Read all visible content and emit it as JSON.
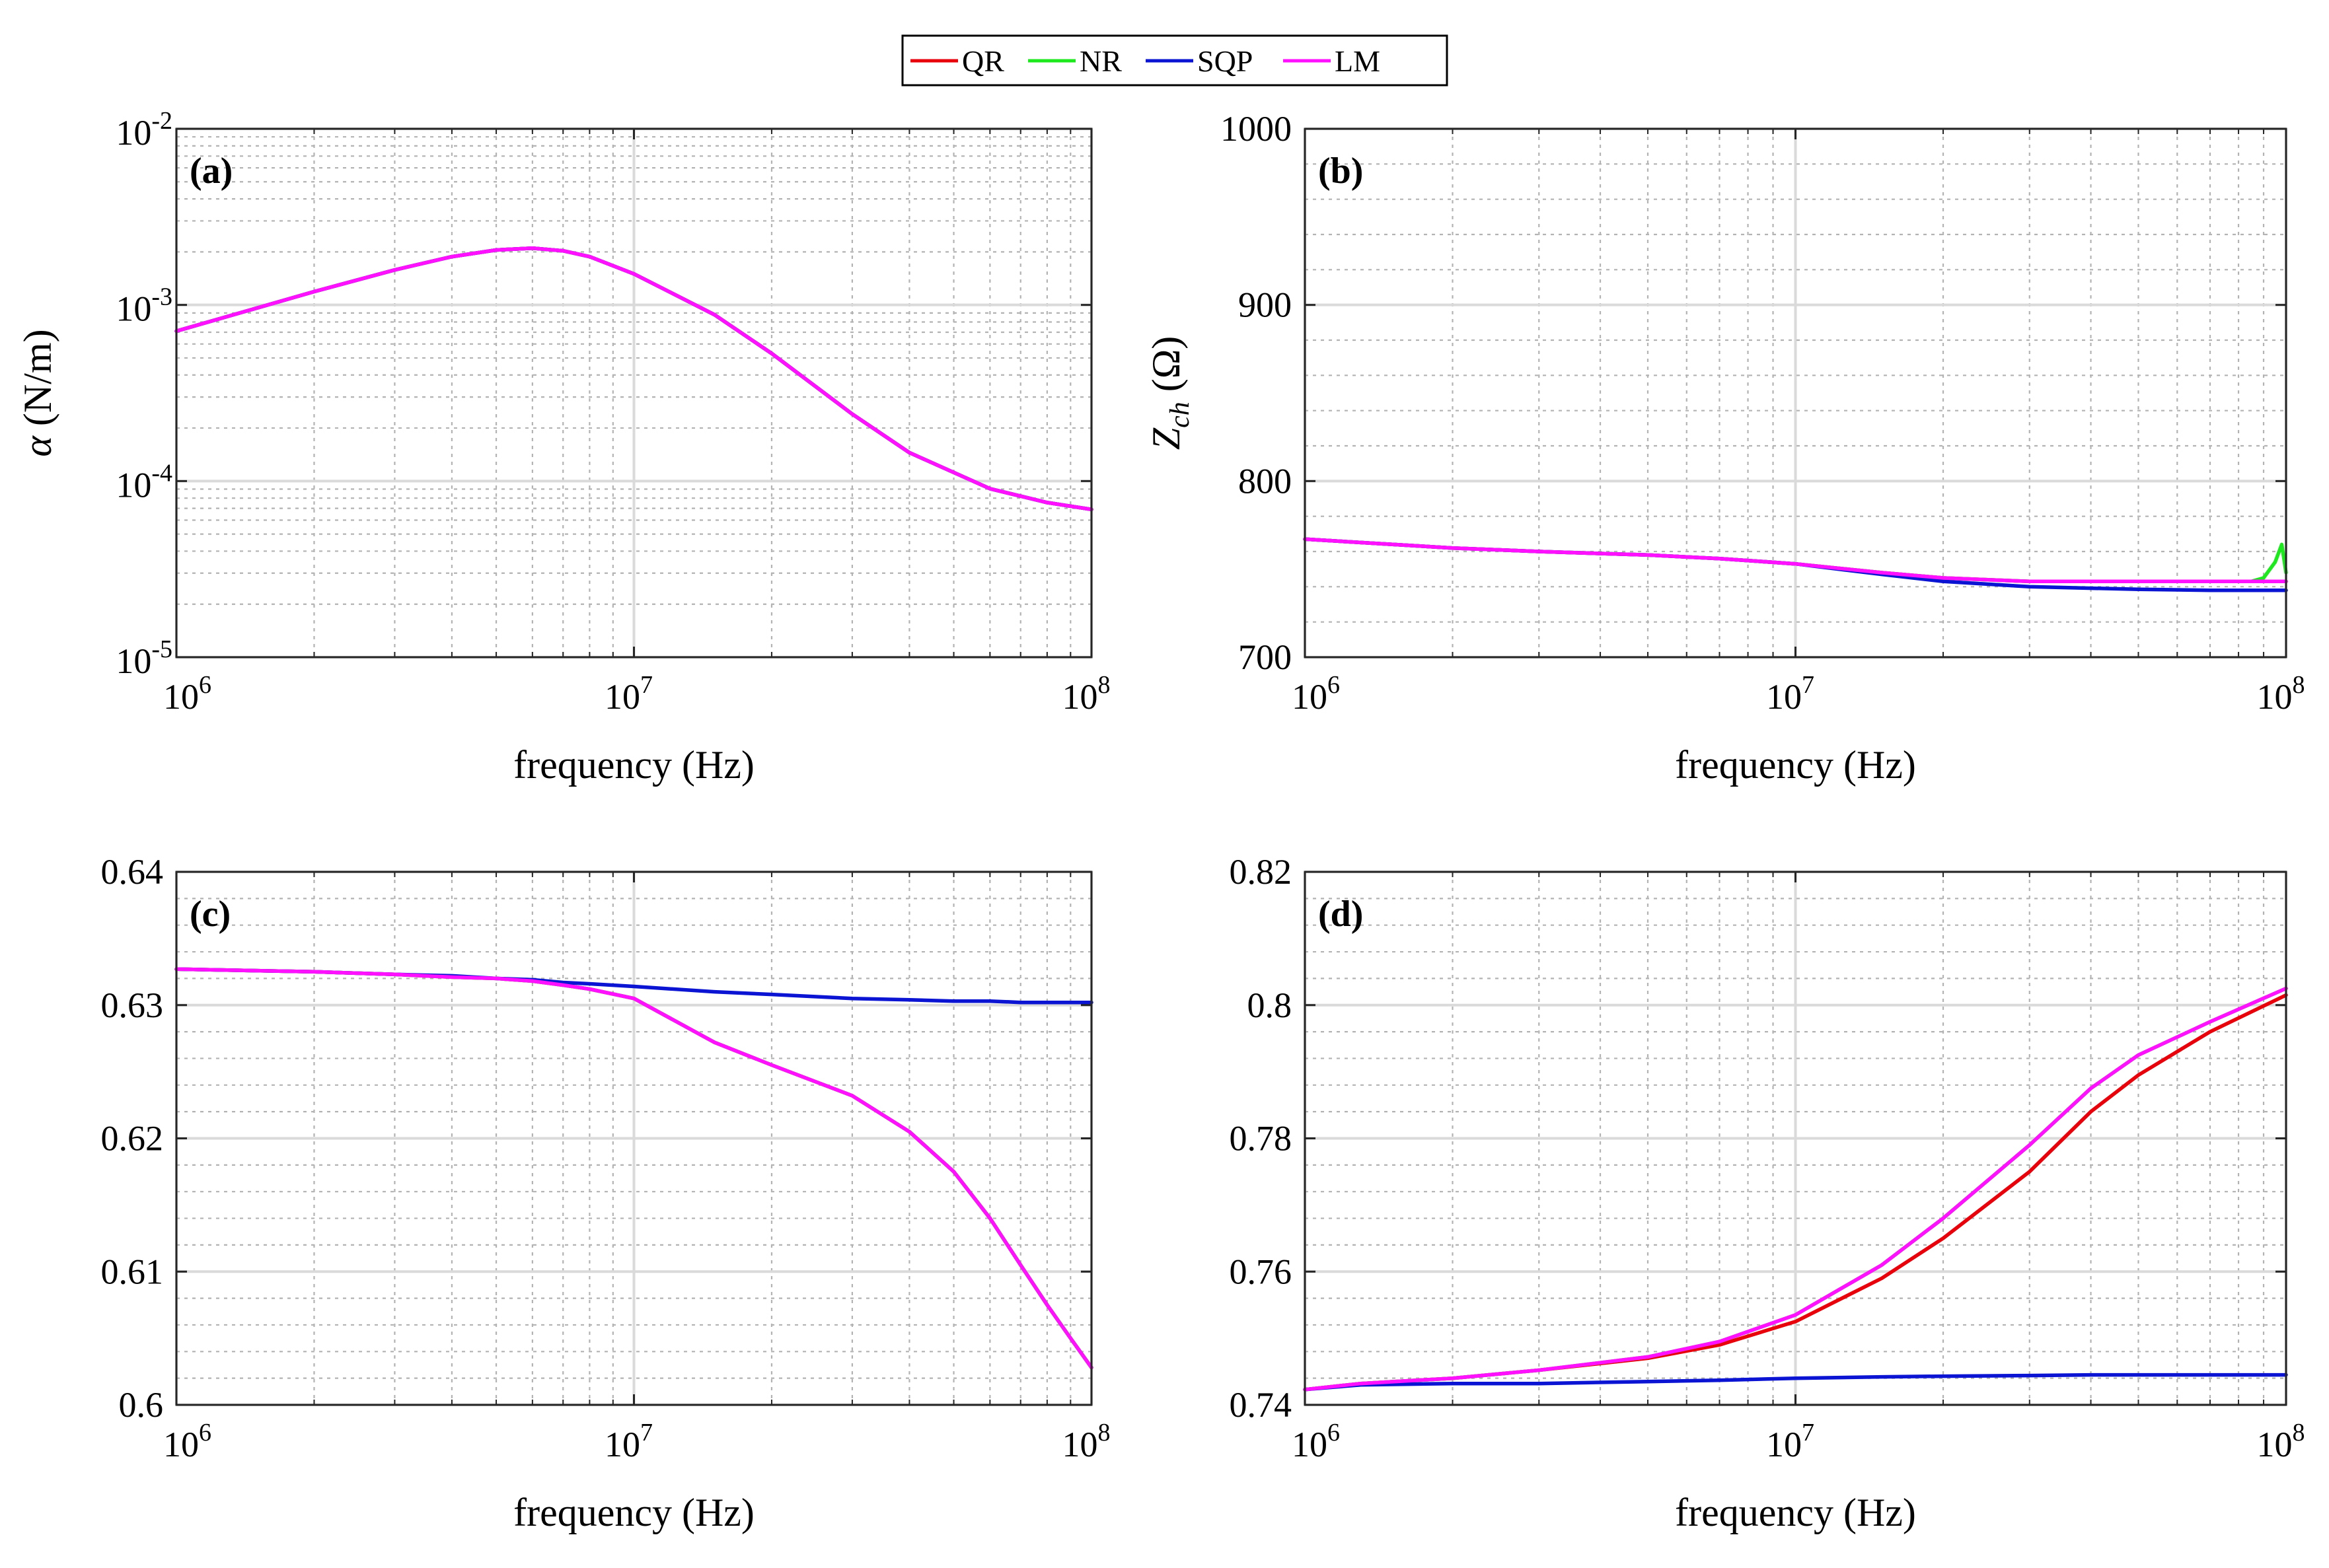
{
  "legend": {
    "entries": [
      {
        "label": "QR",
        "color": "#e8000b"
      },
      {
        "label": "NR",
        "color": "#1ee81e"
      },
      {
        "label": "SQP",
        "color": "#0a14d2"
      },
      {
        "label": "LM",
        "color": "#ff10ff"
      }
    ]
  },
  "chart_data": [
    {
      "type": "line",
      "panel": "(a)",
      "xlabel": "frequency (Hz)",
      "ylabel_symbol": "α",
      "ylabel_unit": " (N/m)",
      "xscale": "log",
      "yscale": "log",
      "xlim": [
        1000000,
        100000000
      ],
      "ylim": [
        1e-05,
        0.01
      ],
      "x_tick_labels": [
        {
          "base": "10",
          "exp": "6"
        },
        {
          "base": "10",
          "exp": "7"
        },
        {
          "base": "10",
          "exp": "8"
        }
      ],
      "y_tick_labels": [
        {
          "base": "10",
          "exp": "-5"
        },
        {
          "base": "10",
          "exp": "-4"
        },
        {
          "base": "10",
          "exp": "-3"
        },
        {
          "base": "10",
          "exp": "-2"
        }
      ],
      "x": [
        1000000.0,
        2000000.0,
        3000000.0,
        4000000.0,
        5000000.0,
        6000000.0,
        7000000.0,
        8000000.0,
        10000000.0,
        15000000.0,
        20000000.0,
        30000000.0,
        40000000.0,
        60000000.0,
        80000000.0,
        100000000.0
      ],
      "series": [
        {
          "name": "QR",
          "values": [
            0.00071,
            0.00119,
            0.00158,
            0.00188,
            0.00205,
            0.0021,
            0.00203,
            0.00188,
            0.0015,
            0.00088,
            0.00053,
            0.00024,
            0.000145,
            9.05e-05,
            7.55e-05,
            6.9e-05
          ]
        },
        {
          "name": "NR",
          "values": [
            0.00071,
            0.00119,
            0.00158,
            0.00188,
            0.00205,
            0.0021,
            0.00203,
            0.00188,
            0.0015,
            0.00088,
            0.00053,
            0.00024,
            0.000145,
            9.05e-05,
            7.55e-05,
            6.9e-05
          ]
        },
        {
          "name": "SQP",
          "values": [
            0.00071,
            0.00119,
            0.00158,
            0.00188,
            0.00205,
            0.0021,
            0.00203,
            0.00188,
            0.0015,
            0.00088,
            0.00053,
            0.00024,
            0.000145,
            9.05e-05,
            7.55e-05,
            6.9e-05
          ]
        },
        {
          "name": "LM",
          "values": [
            0.00071,
            0.00119,
            0.00158,
            0.00188,
            0.00205,
            0.0021,
            0.00203,
            0.00188,
            0.0015,
            0.00088,
            0.00053,
            0.00024,
            0.000145,
            9.05e-05,
            7.55e-05,
            6.9e-05
          ]
        }
      ]
    },
    {
      "type": "line",
      "panel": "(b)",
      "xlabel": "frequency (Hz)",
      "ylabel_symbol": "Z",
      "ylabel_sub": "ch",
      "ylabel_unit": " (Ω)",
      "xscale": "log",
      "yscale": "linear",
      "xlim": [
        1000000,
        100000000
      ],
      "ylim": [
        700,
        1000
      ],
      "x_tick_labels": [
        {
          "base": "10",
          "exp": "6"
        },
        {
          "base": "10",
          "exp": "7"
        },
        {
          "base": "10",
          "exp": "8"
        }
      ],
      "y_ticks": [
        700,
        800,
        900,
        1000
      ],
      "y_tick_labels": [
        "700",
        "800",
        "900",
        "1000"
      ],
      "x": [
        1000000.0,
        2000000.0,
        3000000.0,
        5000000.0,
        7000000.0,
        10000000.0,
        15000000.0,
        20000000.0,
        30000000.0,
        50000000.0,
        70000000.0,
        85000000.0,
        90000000.0,
        95000000.0,
        98000000.0,
        100000000.0
      ],
      "series": [
        {
          "name": "QR",
          "values": [
            767,
            762,
            760,
            758,
            756,
            753,
            748,
            745,
            743,
            743,
            743,
            743,
            743,
            743,
            743,
            743
          ]
        },
        {
          "name": "NR",
          "values": [
            767,
            762,
            760,
            758,
            756,
            753,
            748,
            745,
            743,
            743,
            743,
            743,
            745,
            754,
            764,
            748
          ]
        },
        {
          "name": "SQP",
          "values": [
            767,
            762,
            760,
            758,
            756,
            753,
            747,
            743,
            740,
            738.5,
            738,
            738,
            738,
            738,
            738,
            738
          ]
        },
        {
          "name": "LM",
          "values": [
            767,
            762,
            760,
            758,
            756,
            753,
            748,
            745,
            743,
            743,
            743,
            743,
            743,
            743,
            743,
            743
          ]
        }
      ]
    },
    {
      "type": "line",
      "panel": "(c)",
      "xlabel": "frequency (Hz)",
      "xscale": "log",
      "yscale": "linear",
      "xlim": [
        1000000,
        100000000
      ],
      "ylim": [
        0.6,
        0.64
      ],
      "x_tick_labels": [
        {
          "base": "10",
          "exp": "6"
        },
        {
          "base": "10",
          "exp": "7"
        },
        {
          "base": "10",
          "exp": "8"
        }
      ],
      "y_ticks": [
        0.6,
        0.61,
        0.62,
        0.63,
        0.64
      ],
      "y_tick_labels": [
        "0.6",
        "0.61",
        "0.62",
        "0.63",
        "0.64"
      ],
      "x": [
        1000000.0,
        2000000.0,
        3000000.0,
        4000000.0,
        5000000.0,
        6000000.0,
        7000000.0,
        8000000.0,
        10000000.0,
        15000000.0,
        20000000.0,
        30000000.0,
        40000000.0,
        50000000.0,
        60000000.0,
        70000000.0,
        80000000.0,
        90000000.0,
        100000000.0
      ],
      "series": [
        {
          "name": "QR",
          "values": [
            0.6327,
            0.6325,
            0.6323,
            0.6321,
            0.632,
            0.6318,
            0.6315,
            0.6312,
            0.6305,
            0.6272,
            0.6255,
            0.6232,
            0.6205,
            0.6175,
            0.614,
            0.6105,
            0.6075,
            0.605,
            0.6028
          ]
        },
        {
          "name": "NR",
          "values": [
            0.6327,
            0.6325,
            0.6323,
            0.6321,
            0.632,
            0.6318,
            0.6315,
            0.6312,
            0.6305,
            0.6272,
            0.6255,
            0.6232,
            0.6205,
            0.6175,
            0.614,
            0.6105,
            0.6075,
            0.605,
            0.6028
          ]
        },
        {
          "name": "SQP",
          "values": [
            0.6327,
            0.6325,
            0.6323,
            0.6322,
            0.632,
            0.6319,
            0.6317,
            0.6316,
            0.6314,
            0.631,
            0.6308,
            0.6305,
            0.6304,
            0.6303,
            0.6303,
            0.6302,
            0.6302,
            0.6302,
            0.6302
          ]
        },
        {
          "name": "LM",
          "values": [
            0.6327,
            0.6325,
            0.6323,
            0.6321,
            0.632,
            0.6318,
            0.6315,
            0.6312,
            0.6305,
            0.6272,
            0.6255,
            0.6232,
            0.6205,
            0.6175,
            0.614,
            0.6105,
            0.6075,
            0.605,
            0.6028
          ]
        }
      ]
    },
    {
      "type": "line",
      "panel": "(d)",
      "xlabel": "frequency (Hz)",
      "xscale": "log",
      "yscale": "linear",
      "xlim": [
        1000000,
        100000000
      ],
      "ylim": [
        0.74,
        0.82
      ],
      "x_tick_labels": [
        {
          "base": "10",
          "exp": "6"
        },
        {
          "base": "10",
          "exp": "7"
        },
        {
          "base": "10",
          "exp": "8"
        }
      ],
      "y_ticks": [
        0.74,
        0.76,
        0.78,
        0.8,
        0.82
      ],
      "y_tick_labels": [
        "0.74",
        "0.76",
        "0.78",
        "0.8",
        "0.82"
      ],
      "x": [
        1000000.0,
        1300000.0,
        2000000.0,
        3000000.0,
        5000000.0,
        7000000.0,
        10000000.0,
        15000000.0,
        20000000.0,
        30000000.0,
        40000000.0,
        50000000.0,
        70000000.0,
        100000000.0
      ],
      "series": [
        {
          "name": "QR",
          "values": [
            0.7423,
            0.7432,
            0.744,
            0.7452,
            0.747,
            0.749,
            0.7525,
            0.759,
            0.765,
            0.775,
            0.784,
            0.7895,
            0.796,
            0.8015
          ]
        },
        {
          "name": "NR",
          "values": [
            0.7423,
            0.7432,
            0.744,
            0.7452,
            0.7472,
            0.7495,
            0.7535,
            0.761,
            0.768,
            0.779,
            0.7875,
            0.7925,
            0.7975,
            0.8025
          ]
        },
        {
          "name": "SQP",
          "values": [
            0.7423,
            0.743,
            0.7432,
            0.7432,
            0.7435,
            0.7437,
            0.744,
            0.7442,
            0.7443,
            0.7444,
            0.7445,
            0.7445,
            0.7445,
            0.7445
          ]
        },
        {
          "name": "LM",
          "values": [
            0.7423,
            0.7432,
            0.744,
            0.7452,
            0.7472,
            0.7495,
            0.7535,
            0.761,
            0.768,
            0.779,
            0.7875,
            0.7925,
            0.7975,
            0.8025
          ]
        }
      ]
    }
  ]
}
